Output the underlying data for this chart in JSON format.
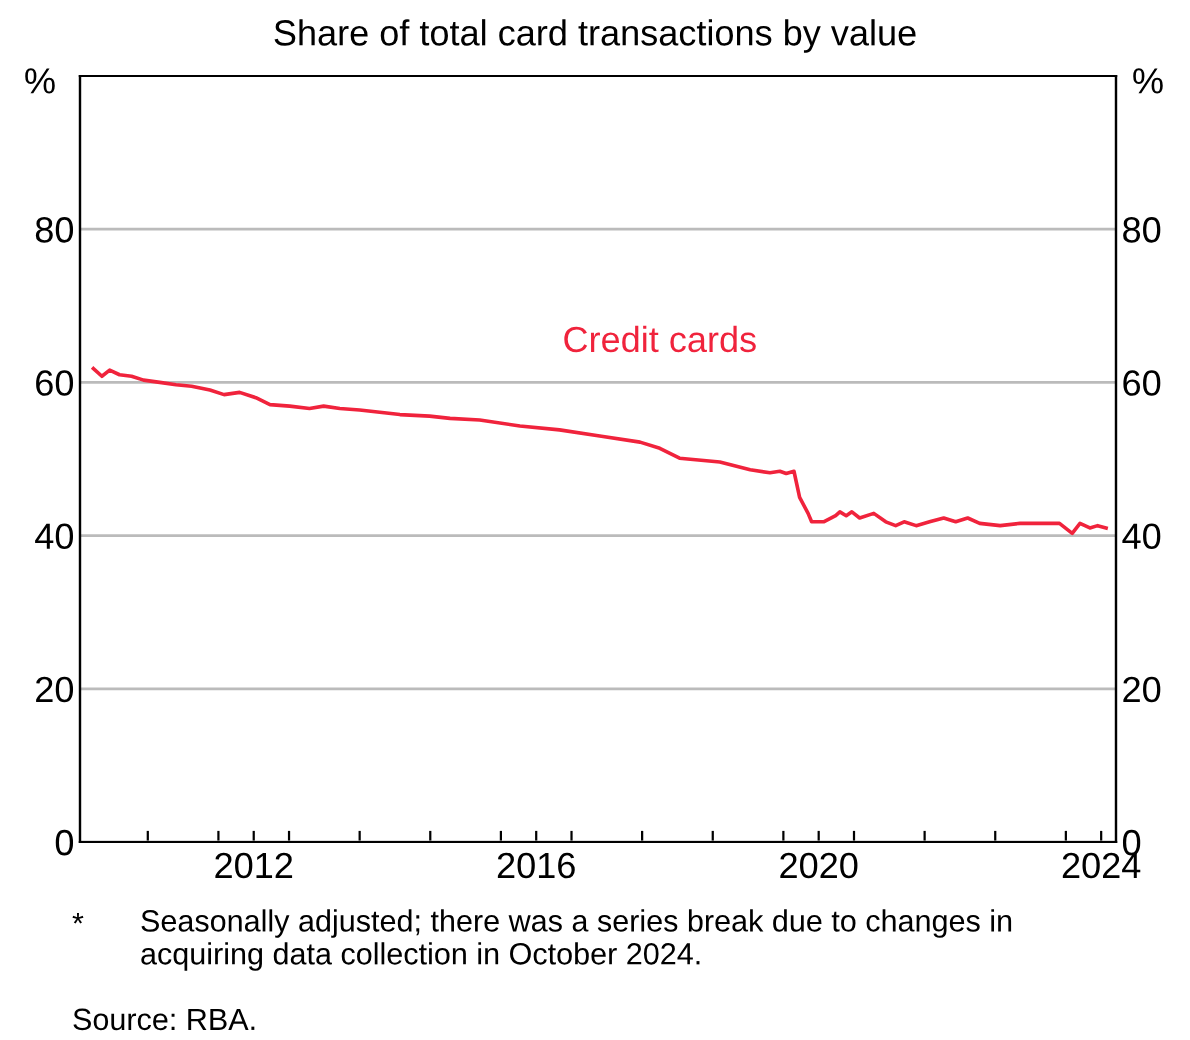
{
  "chart_data": {
    "type": "line",
    "title": "Share of total card transactions by value",
    "ylabel": "%",
    "y2label": "%",
    "xlim": [
      2010.04,
      2024.71
    ],
    "xticks": [
      {
        "value": 2011,
        "label": null
      },
      {
        "value": 2012,
        "label": null
      },
      {
        "value": 2012.5,
        "label": "2012"
      },
      {
        "value": 2013,
        "label": null
      },
      {
        "value": 2014,
        "label": null
      },
      {
        "value": 2015,
        "label": null
      },
      {
        "value": 2016,
        "label": null
      },
      {
        "value": 2016.5,
        "label": "2016"
      },
      {
        "value": 2017,
        "label": null
      },
      {
        "value": 2018,
        "label": null
      },
      {
        "value": 2019,
        "label": null
      },
      {
        "value": 2020,
        "label": null
      },
      {
        "value": 2020.5,
        "label": "2020"
      },
      {
        "value": 2021,
        "label": null
      },
      {
        "value": 2022,
        "label": null
      },
      {
        "value": 2023,
        "label": null
      },
      {
        "value": 2024,
        "label": null
      },
      {
        "value": 2024.5,
        "label": "2024"
      }
    ],
    "ylim": [
      0,
      100
    ],
    "yticks": [
      0,
      20,
      40,
      60,
      80
    ],
    "y2lim": [
      0,
      100
    ],
    "y2ticks": [
      0,
      20,
      40,
      60,
      80
    ],
    "grid": "y",
    "legend": false,
    "marker": "none",
    "line_style": "solid",
    "series": [
      {
        "name": "Credit cards",
        "color": "#f0233c",
        "x": [
          2010.23,
          2010.35,
          2010.46,
          2010.6,
          2010.77,
          2010.94,
          2011.17,
          2011.4,
          2011.62,
          2011.88,
          2012.08,
          2012.3,
          2012.53,
          2012.73,
          2013.01,
          2013.29,
          2013.49,
          2013.72,
          2014.0,
          2014.57,
          2014.99,
          2015.28,
          2015.7,
          2016.27,
          2016.83,
          2017.4,
          2017.97,
          2018.25,
          2018.53,
          2019.1,
          2019.53,
          2019.81,
          2019.95,
          2020.04,
          2020.15,
          2020.23,
          2020.35,
          2020.4,
          2020.57,
          2020.74,
          2020.8,
          2020.89,
          2020.97,
          2021.08,
          2021.28,
          2021.45,
          2021.59,
          2021.71,
          2021.88,
          2022.07,
          2022.27,
          2022.44,
          2022.61,
          2022.78,
          2023.07,
          2023.35,
          2023.63,
          2023.91,
          2024.09,
          2024.2,
          2024.34,
          2024.45,
          2024.57
        ],
        "values": [
          61.8,
          60.8,
          61.6,
          61,
          60.8,
          60.3,
          60,
          59.7,
          59.5,
          59,
          58.4,
          58.7,
          58,
          57.1,
          56.9,
          56.6,
          56.9,
          56.6,
          56.4,
          55.8,
          55.6,
          55.3,
          55.1,
          54.3,
          53.8,
          53,
          52.2,
          51.4,
          50.1,
          49.6,
          48.6,
          48.2,
          48.4,
          48.1,
          48.4,
          45,
          42.9,
          41.8,
          41.8,
          42.6,
          43.1,
          42.6,
          43.1,
          42.3,
          42.9,
          41.8,
          41.3,
          41.8,
          41.3,
          41.8,
          42.3,
          41.8,
          42.3,
          41.6,
          41.3,
          41.6,
          41.6,
          41.6,
          40.3,
          41.6,
          41,
          41.3,
          41
        ]
      }
    ],
    "annotations": [
      "*",
      "Seasonally adjusted; there was a series break due to changes in\nacquiring data collection in October 2024.",
      "Source: RBA."
    ]
  }
}
